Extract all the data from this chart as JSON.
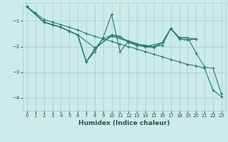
{
  "xlabel": "Humidex (Indice chaleur)",
  "bg_color": "#cceaea",
  "grid_color": "#aad4d4",
  "line_color": "#2a7d70",
  "xlim": [
    -0.5,
    23.5
  ],
  "ylim": [
    -4.5,
    -0.3
  ],
  "yticks": [
    -4,
    -3,
    -2,
    -1
  ],
  "xticks": [
    0,
    1,
    2,
    3,
    4,
    5,
    6,
    7,
    8,
    9,
    10,
    11,
    12,
    13,
    14,
    15,
    16,
    17,
    18,
    19,
    20,
    21,
    22,
    23
  ],
  "lines": [
    {
      "x": [
        0,
        1,
        2,
        3,
        4,
        5,
        6,
        7,
        8,
        9,
        10,
        11,
        12,
        13,
        14,
        15,
        16,
        17,
        18,
        19,
        20,
        21,
        22,
        23
      ],
      "y": [
        -0.45,
        -0.7,
        -0.95,
        -1.05,
        -1.15,
        -1.25,
        -1.35,
        -1.5,
        -1.6,
        -1.7,
        -1.8,
        -1.9,
        -2.0,
        -2.1,
        -2.2,
        -2.3,
        -2.4,
        -2.5,
        -2.6,
        -2.7,
        -2.75,
        -2.85,
        -3.7,
        -3.95
      ]
    },
    {
      "x": [
        0,
        2,
        3,
        4,
        5,
        6,
        7,
        8,
        9,
        10,
        11,
        12,
        13,
        14,
        15,
        16,
        17,
        18,
        19,
        20
      ],
      "y": [
        -0.45,
        -1.05,
        -1.15,
        -1.25,
        -1.4,
        -1.55,
        -2.6,
        -2.2,
        -1.65,
        -0.75,
        -2.2,
        -1.8,
        -1.95,
        -2.0,
        -2.05,
        -1.85,
        -1.3,
        -1.7,
        -1.75,
        -1.7
      ]
    },
    {
      "x": [
        0,
        2,
        3,
        4,
        5,
        6,
        8,
        10,
        12,
        13,
        14,
        15,
        16,
        17,
        18,
        19,
        20
      ],
      "y": [
        -0.45,
        -1.05,
        -1.15,
        -1.25,
        -1.4,
        -1.55,
        -2.05,
        -1.6,
        -1.8,
        -1.9,
        -1.95,
        -2.0,
        -1.85,
        -1.3,
        -1.7,
        -1.75,
        -1.7
      ]
    },
    {
      "x": [
        0,
        2,
        3,
        4,
        5,
        6,
        7,
        8,
        9,
        10,
        11,
        12,
        13,
        14,
        15,
        16,
        17,
        18,
        19,
        20,
        21,
        22,
        23
      ],
      "y": [
        -0.45,
        -1.05,
        -1.15,
        -1.25,
        -1.4,
        -1.55,
        -2.6,
        -2.1,
        -1.7,
        -1.55,
        -1.6,
        -1.85,
        -1.95,
        -2.0,
        -2.0,
        -1.95,
        -1.3,
        -1.65,
        -1.65,
        -2.25,
        -2.8,
        -2.85,
        -3.85
      ]
    },
    {
      "x": [
        0,
        2,
        3,
        4,
        5,
        6,
        7,
        8,
        10,
        14,
        16,
        17,
        18,
        20
      ],
      "y": [
        -0.45,
        -1.05,
        -1.15,
        -1.25,
        -1.4,
        -1.55,
        -2.6,
        -2.1,
        -1.55,
        -2.0,
        -1.85,
        -1.3,
        -1.65,
        -1.7
      ]
    }
  ]
}
